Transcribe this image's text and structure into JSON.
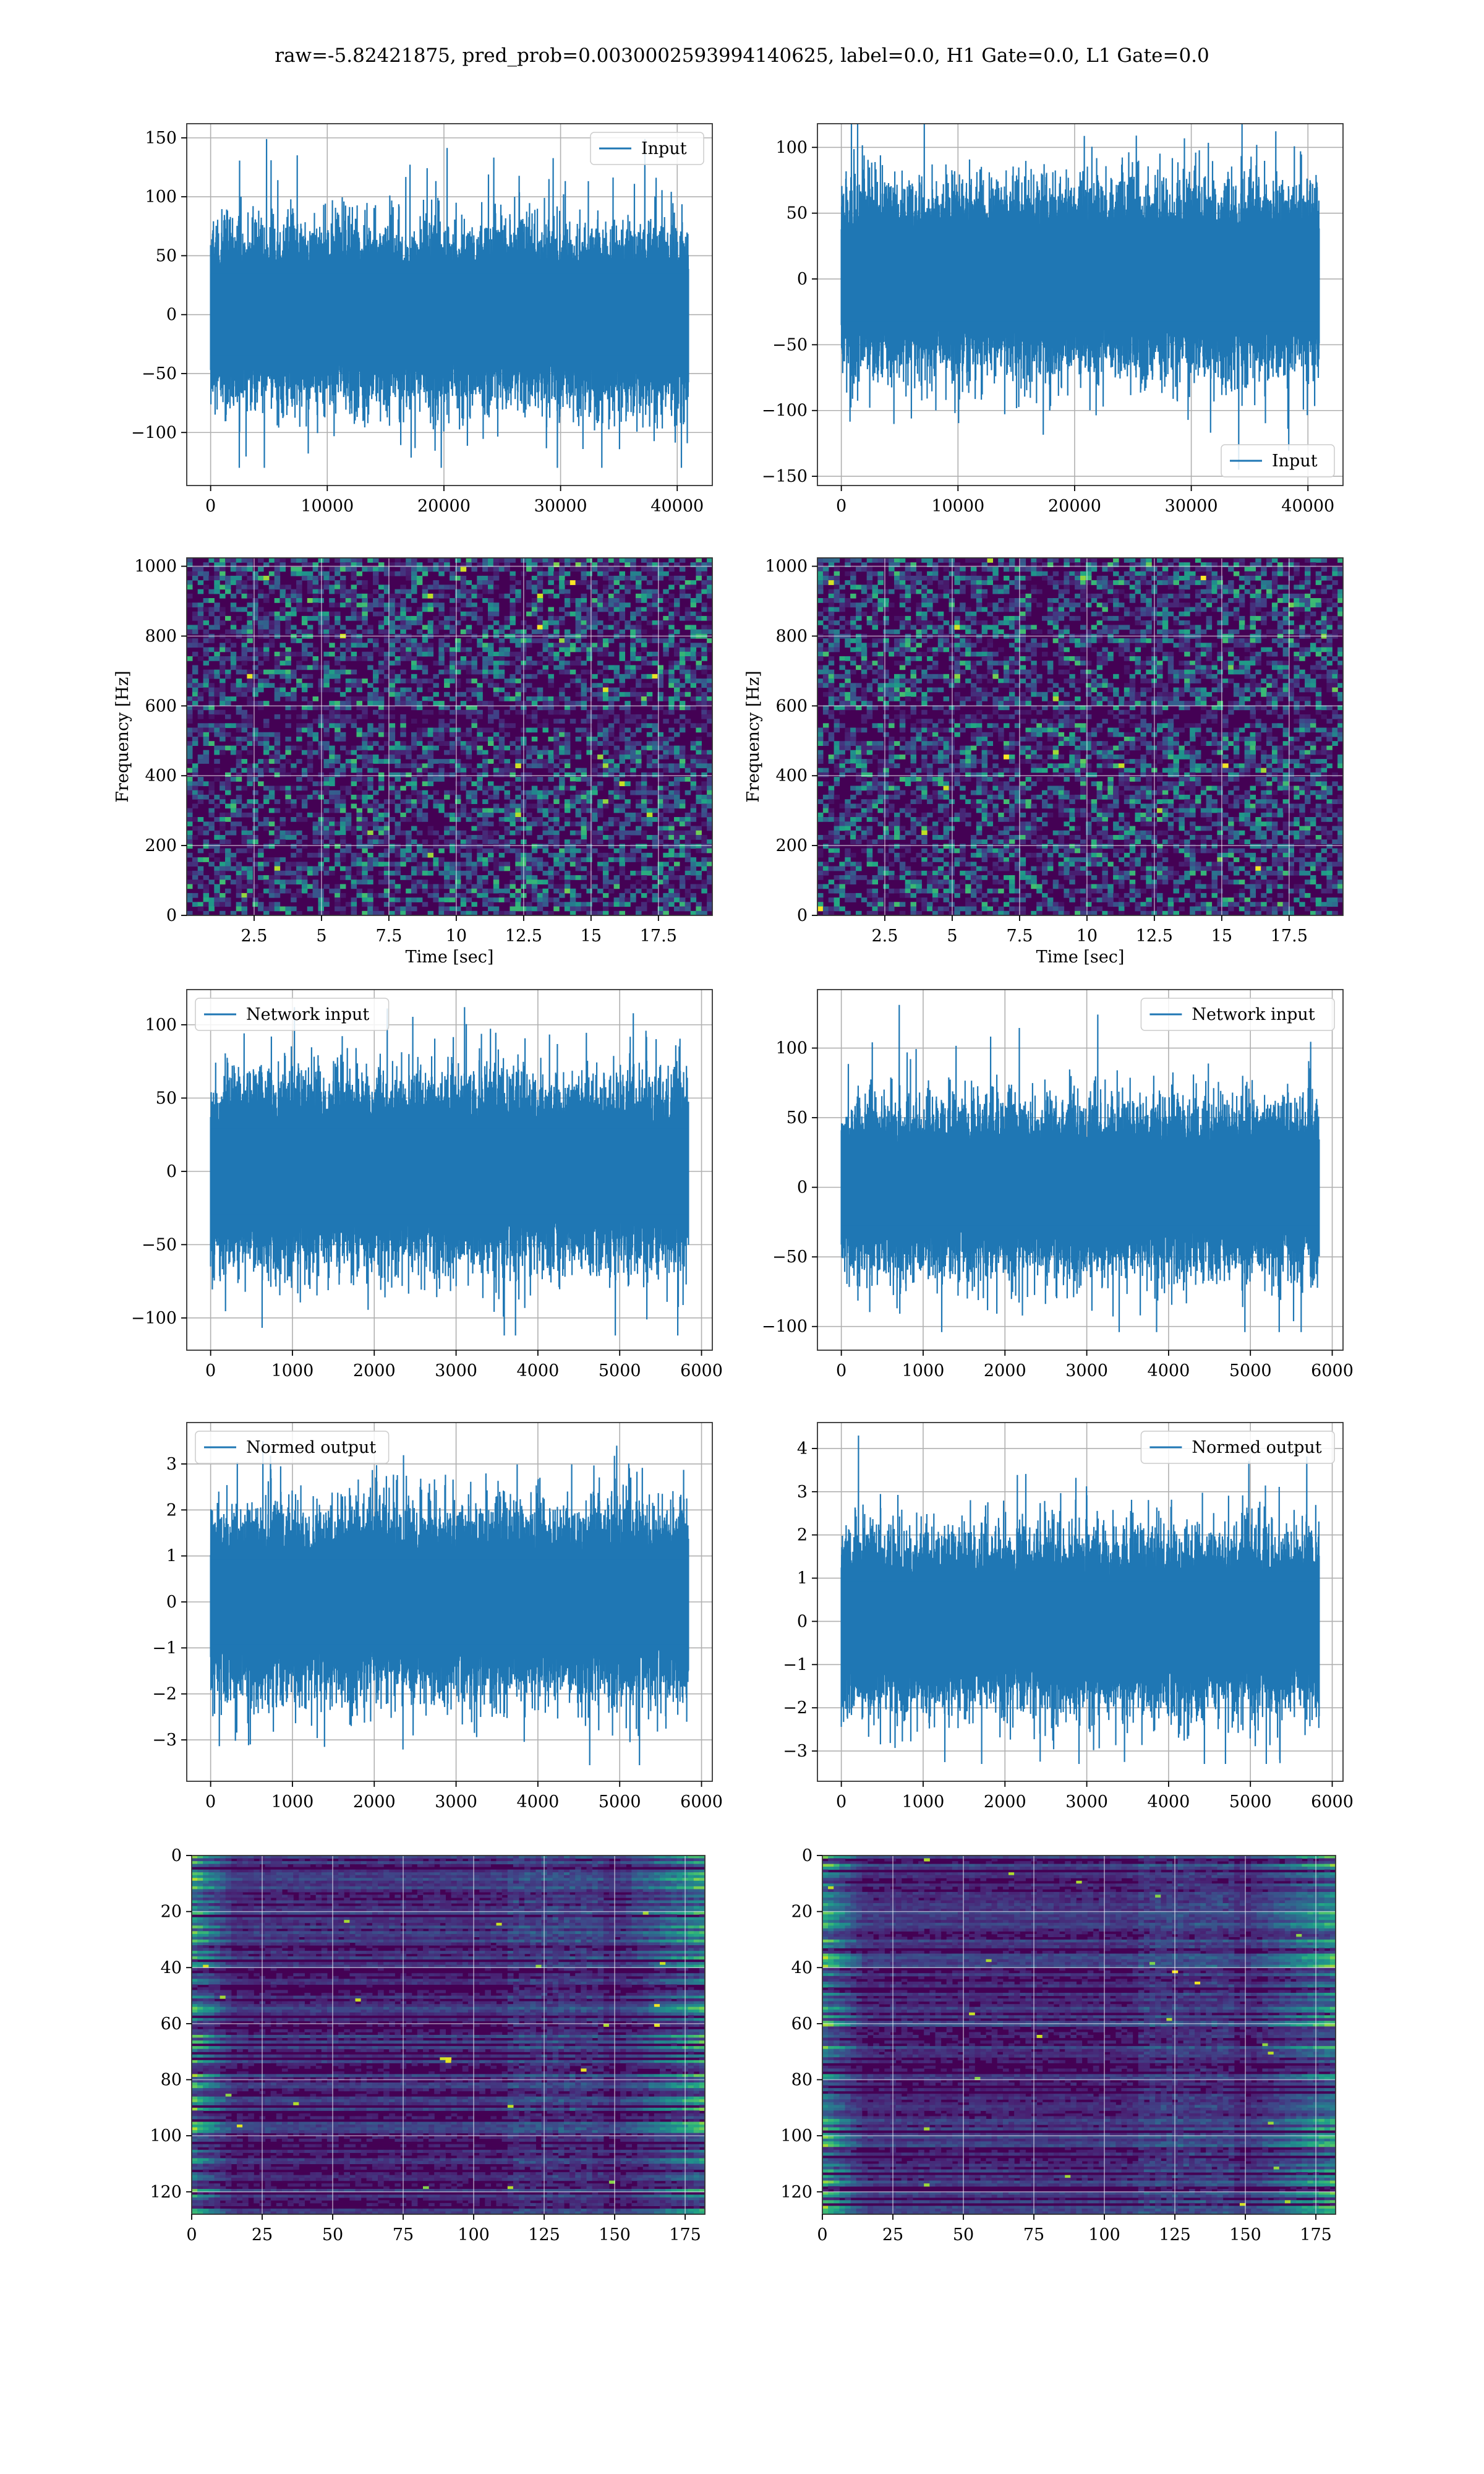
{
  "figure": {
    "suptitle": "raw=-5.82421875, pred_prob=0.0030002593994140625, label=0.0, H1 Gate=0.0, L1 Gate=0.0"
  },
  "colors": {
    "line": "#1f77b4",
    "grid": "#b0b0b0",
    "heat_low": "#440154",
    "heat_mid": "#21908c",
    "heat_high": "#fde725"
  },
  "chart_data": [
    {
      "id": "input-h1",
      "type": "line",
      "row": 0,
      "col": 0,
      "series": [
        {
          "name": "Input",
          "n": 40960,
          "amplitude_typical": 45,
          "peak_max": 149,
          "peak_min": -130
        }
      ],
      "xlim": [
        -2048,
        43008
      ],
      "ylim": [
        -145,
        162
      ],
      "xticks": [
        0,
        10000,
        20000,
        30000,
        40000
      ],
      "yticks": [
        -100,
        -50,
        0,
        50,
        100,
        150
      ],
      "legend": "top-right",
      "grid": true,
      "xlabel": "",
      "ylabel": ""
    },
    {
      "id": "input-l1",
      "type": "line",
      "row": 0,
      "col": 1,
      "series": [
        {
          "name": "Input",
          "n": 40960,
          "amplitude_typical": 42,
          "peak_max": 120,
          "peak_min": -145
        }
      ],
      "xlim": [
        -2048,
        43008
      ],
      "ylim": [
        -157,
        118
      ],
      "xticks": [
        0,
        10000,
        20000,
        30000,
        40000
      ],
      "yticks": [
        -150,
        -100,
        -50,
        0,
        50,
        100
      ],
      "legend": "bottom-right",
      "grid": true,
      "xlabel": "",
      "ylabel": ""
    },
    {
      "id": "spec-h1",
      "type": "heatmap",
      "row": 1,
      "col": 0,
      "xlim": [
        0,
        19.5
      ],
      "ylim": [
        0,
        1024
      ],
      "xticks": [
        2.5,
        5.0,
        7.5,
        10.0,
        12.5,
        15.0,
        17.5
      ],
      "yticks": [
        0,
        200,
        400,
        600,
        800,
        1000
      ],
      "xlabel": "Time [sec]",
      "ylabel": "Frequency [Hz]",
      "grid": true
    },
    {
      "id": "spec-l1",
      "type": "heatmap",
      "row": 1,
      "col": 1,
      "xlim": [
        0,
        19.5
      ],
      "ylim": [
        0,
        1024
      ],
      "xticks": [
        2.5,
        5.0,
        7.5,
        10.0,
        12.5,
        15.0,
        17.5
      ],
      "yticks": [
        0,
        200,
        400,
        600,
        800,
        1000
      ],
      "xlabel": "Time [sec]",
      "ylabel": "Frequency [Hz]",
      "grid": true
    },
    {
      "id": "netin-h1",
      "type": "line",
      "row": 2,
      "col": 0,
      "series": [
        {
          "name": "Network input",
          "n": 5840,
          "amplitude_typical": 38,
          "peak_max": 112,
          "peak_min": -112
        }
      ],
      "xlim": [
        -292,
        6132
      ],
      "ylim": [
        -122,
        124
      ],
      "xticks": [
        0,
        1000,
        2000,
        3000,
        4000,
        5000,
        6000
      ],
      "yticks": [
        -100,
        -50,
        0,
        50,
        100
      ],
      "legend": "top-left",
      "grid": true,
      "xlabel": "",
      "ylabel": ""
    },
    {
      "id": "netin-l1",
      "type": "line",
      "row": 2,
      "col": 1,
      "series": [
        {
          "name": "Network input",
          "n": 5840,
          "amplitude_typical": 36,
          "peak_max": 131,
          "peak_min": -104
        }
      ],
      "xlim": [
        -292,
        6132
      ],
      "ylim": [
        -117,
        142
      ],
      "xticks": [
        0,
        1000,
        2000,
        3000,
        4000,
        5000,
        6000
      ],
      "yticks": [
        -100,
        -50,
        0,
        50,
        100
      ],
      "legend": "top-right",
      "grid": true,
      "xlabel": "",
      "ylabel": ""
    },
    {
      "id": "norm-h1",
      "type": "line",
      "row": 3,
      "col": 0,
      "series": [
        {
          "name": "Normed output",
          "n": 5840,
          "amplitude_typical": 1.2,
          "peak_max": 3.5,
          "peak_min": -3.55
        }
      ],
      "xlim": [
        -292,
        6132
      ],
      "ylim": [
        -3.9,
        3.9
      ],
      "xticks": [
        0,
        1000,
        2000,
        3000,
        4000,
        5000,
        6000
      ],
      "yticks": [
        -3,
        -2,
        -1,
        0,
        1,
        2,
        3
      ],
      "legend": "top-left",
      "grid": true,
      "xlabel": "",
      "ylabel": ""
    },
    {
      "id": "norm-l1",
      "type": "line",
      "row": 3,
      "col": 1,
      "series": [
        {
          "name": "Normed output",
          "n": 5840,
          "amplitude_typical": 1.2,
          "peak_max": 4.3,
          "peak_min": -3.3
        }
      ],
      "xlim": [
        -292,
        6132
      ],
      "ylim": [
        -3.7,
        4.6
      ],
      "xticks": [
        0,
        1000,
        2000,
        3000,
        4000,
        5000,
        6000
      ],
      "yticks": [
        -3,
        -2,
        -1,
        0,
        1,
        2,
        3,
        4
      ],
      "legend": "top-right",
      "grid": true,
      "xlabel": "",
      "ylabel": ""
    },
    {
      "id": "feat-h1",
      "type": "heatmap",
      "row": 4,
      "col": 0,
      "xlim": [
        0,
        182
      ],
      "ylim": [
        128,
        0
      ],
      "xticks": [
        0,
        25,
        50,
        75,
        100,
        125,
        150,
        175
      ],
      "yticks": [
        0,
        20,
        40,
        60,
        80,
        100,
        120
      ],
      "xlabel": "",
      "ylabel": "",
      "grid": true
    },
    {
      "id": "feat-l1",
      "type": "heatmap",
      "row": 4,
      "col": 1,
      "xlim": [
        0,
        182
      ],
      "ylim": [
        128,
        0
      ],
      "xticks": [
        0,
        25,
        50,
        75,
        100,
        125,
        150,
        175
      ],
      "yticks": [
        0,
        20,
        40,
        60,
        80,
        100,
        120
      ],
      "xlabel": "",
      "ylabel": "",
      "grid": true
    }
  ]
}
